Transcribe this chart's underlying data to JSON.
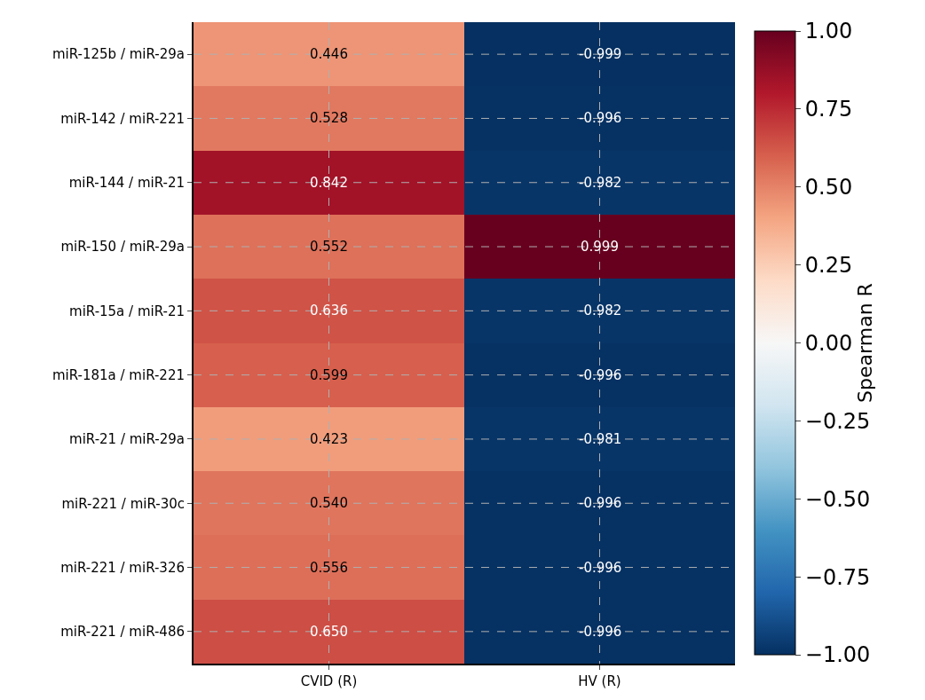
{
  "chart_data": {
    "type": "heatmap",
    "clabel": "Spearman R",
    "categories": [
      "CVID (R)",
      "HV (R)"
    ],
    "y_categories": [
      "miR-125b / miR-29a",
      "miR-142 / miR-221",
      "miR-144 / miR-21",
      "miR-150 / miR-29a",
      "miR-15a / miR-21",
      "miR-181a / miR-221",
      "miR-21 / miR-29a",
      "miR-221 / miR-30c",
      "miR-221 / miR-326",
      "miR-221 / miR-486"
    ],
    "cells": [
      [
        0.446,
        -0.999
      ],
      [
        0.528,
        -0.996
      ],
      [
        0.842,
        -0.982
      ],
      [
        0.552,
        0.999
      ],
      [
        0.636,
        -0.982
      ],
      [
        0.599,
        -0.996
      ],
      [
        0.423,
        -0.981
      ],
      [
        0.54,
        -0.996
      ],
      [
        0.556,
        -0.996
      ],
      [
        0.65,
        -0.996
      ]
    ],
    "cell_labels": [
      [
        "0.446",
        "-0.999"
      ],
      [
        "0.528",
        "-0.996"
      ],
      [
        "0.842",
        "-0.982"
      ],
      [
        "0.552",
        "0.999"
      ],
      [
        "0.636",
        "-0.982"
      ],
      [
        "0.599",
        "-0.996"
      ],
      [
        "0.423",
        "-0.981"
      ],
      [
        "0.540",
        "-0.996"
      ],
      [
        "0.556",
        "-0.996"
      ],
      [
        "0.650",
        "-0.996"
      ]
    ],
    "clim": [
      -1,
      1
    ],
    "cticks": [
      {
        "value": -1,
        "label": "−1.00"
      },
      {
        "value": -0.75,
        "label": "−0.75"
      },
      {
        "value": -0.5,
        "label": "−0.50"
      },
      {
        "value": -0.25,
        "label": "−0.25"
      },
      {
        "value": 0,
        "label": "0.00"
      },
      {
        "value": 0.25,
        "label": "0.25"
      },
      {
        "value": 0.5,
        "label": "0.50"
      },
      {
        "value": 0.75,
        "label": "0.75"
      },
      {
        "value": 1,
        "label": "1.00"
      }
    ],
    "grid": true
  }
}
